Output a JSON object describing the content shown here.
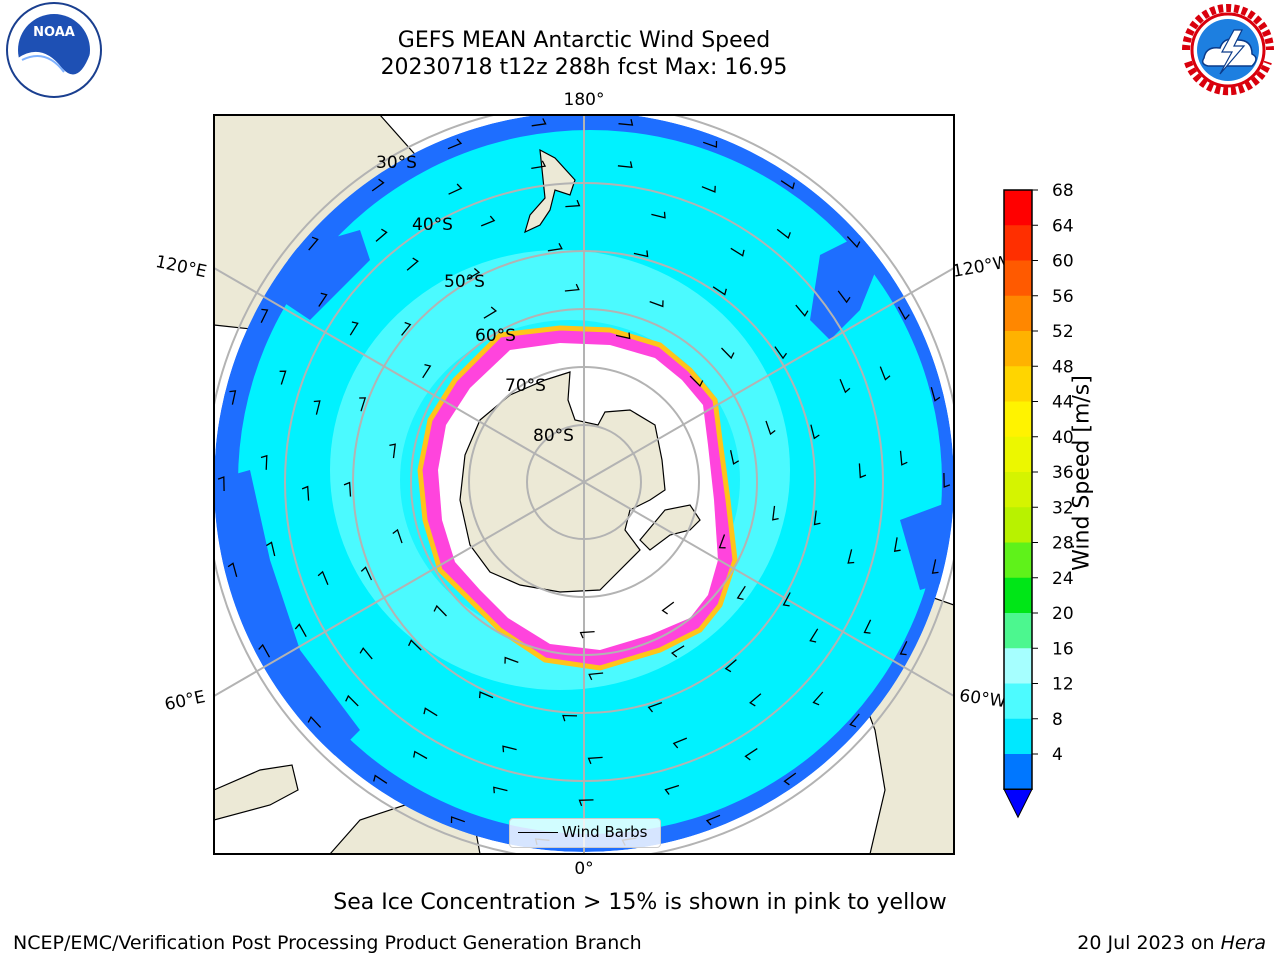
{
  "title_line1": "GEFS MEAN Antarctic Wind Speed",
  "title_line2": "20230718 t12z 288h fcst   Max: 16.95",
  "caption": "Sea Ice Concentration > 15% is shown in pink to yellow",
  "footer_left": "NCEP/EMC/Verification Post Processing Product Generation Branch",
  "footer_date": "20 Jul 2023 on ",
  "footer_host": "Hera",
  "legend_label": "Wind Barbs",
  "map": {
    "projection": "south-polar-stereographic",
    "longitude_labels": [
      {
        "text": "180°",
        "lon": 180
      },
      {
        "text": "120°E",
        "lon": 120
      },
      {
        "text": "120°W",
        "lon": -120
      },
      {
        "text": "60°E",
        "lon": 60
      },
      {
        "text": "60°W",
        "lon": -60
      },
      {
        "text": "0°",
        "lon": 0
      }
    ],
    "latitude_labels": [
      "30°S",
      "40°S",
      "50°S",
      "60°S",
      "70°S",
      "80°S"
    ],
    "colors": {
      "land": "#ece9d6",
      "ocean_low": "#1e6eff",
      "ocean_mid": "#00f2ff",
      "ocean_high": "#58fbff",
      "ice_edge": "#ff44dd",
      "ice_fringe": "#ffc41a",
      "grid": "#b3b3b3"
    }
  },
  "colorbar": {
    "label": "Wind Speed [m/s]",
    "ticks": [
      "68",
      "64",
      "60",
      "56",
      "52",
      "48",
      "44",
      "40",
      "36",
      "32",
      "28",
      "24",
      "20",
      "16",
      "12",
      "8",
      "4"
    ],
    "colors": [
      "#ff0000",
      "#ff2f00",
      "#ff5a00",
      "#ff8700",
      "#ffb200",
      "#ffd500",
      "#fff300",
      "#ecf700",
      "#d5f400",
      "#b8f200",
      "#5ff21a",
      "#00e617",
      "#4cf78f",
      "#a6ffff",
      "#4dfbff",
      "#00e8ff",
      "#0077ff"
    ],
    "underflow_color": "#0000ff"
  }
}
